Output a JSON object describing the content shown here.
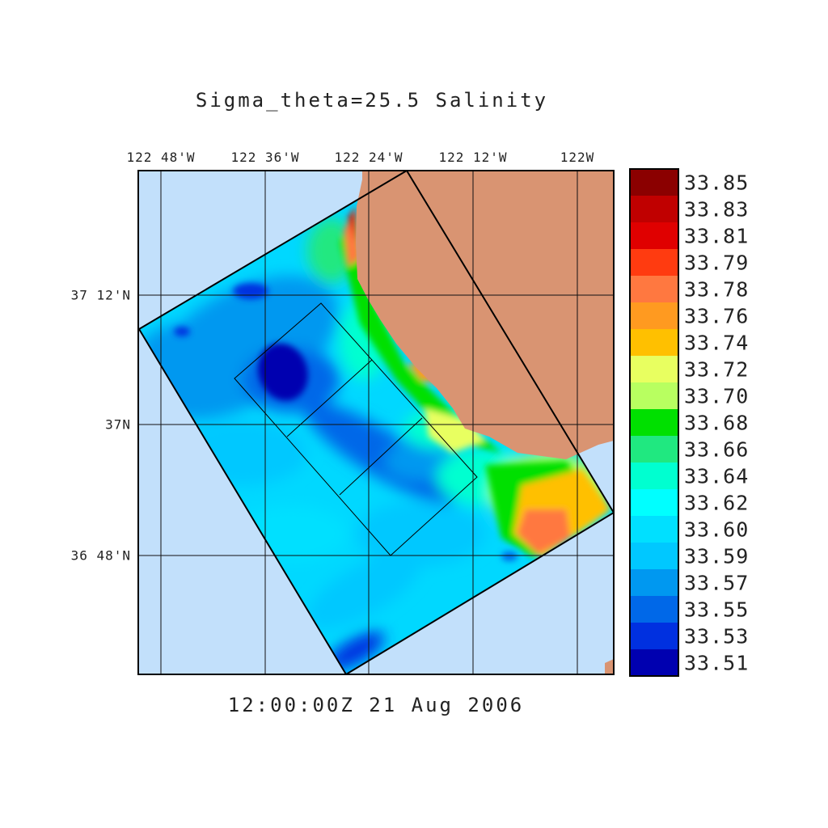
{
  "title": "Sigma_theta=25.5 Salinity",
  "timestamp": "12:00:00Z  21 Aug 2006",
  "lon_labels": [
    "122 48'W",
    "122 36'W",
    "122 24'W",
    "122 12'W",
    "122W"
  ],
  "lat_labels": [
    "37 12'N",
    "37N",
    "36 48'N"
  ],
  "colorbar": {
    "values": [
      "33.85",
      "33.83",
      "33.81",
      "33.79",
      "33.78",
      "33.76",
      "33.74",
      "33.72",
      "33.70",
      "33.68",
      "33.66",
      "33.64",
      "33.62",
      "33.60",
      "33.59",
      "33.57",
      "33.55",
      "33.53",
      "33.51"
    ],
    "colors": [
      "#8b0000",
      "#c00000",
      "#e00000",
      "#ff3b10",
      "#ff7840",
      "#ff9a20",
      "#ffc000",
      "#e8ff60",
      "#b8ff60",
      "#00e000",
      "#20e880",
      "#00ffd0",
      "#00ffff",
      "#00e0ff",
      "#00c8ff",
      "#0098f0",
      "#0068e8",
      "#0030e0",
      "#0000b0"
    ]
  },
  "colors": {
    "ocean_background": "#c2e0fb",
    "land": "#d99472",
    "domain_base": "#00d8ff"
  }
}
